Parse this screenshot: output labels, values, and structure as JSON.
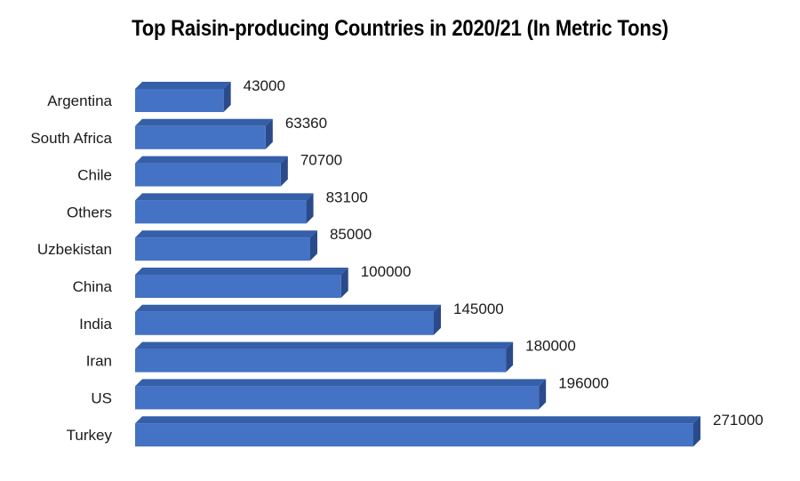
{
  "chart_data": {
    "type": "bar",
    "orientation": "horizontal",
    "title": "Top Raisin-producing  Countries in 2020/21 (In Metric Tons)",
    "categories": [
      "Argentina",
      "South Africa",
      "Chile",
      "Others",
      "Uzbekistan",
      "China",
      "India",
      "Iran",
      "US",
      "Turkey"
    ],
    "values": [
      43000,
      63360,
      70700,
      83100,
      85000,
      100000,
      145000,
      180000,
      196000,
      271000
    ],
    "data_labels": [
      "43000",
      "63360",
      "70700",
      "83100",
      "85000",
      "100000",
      "145000",
      "180000",
      "196000",
      "271000"
    ],
    "xlabel": "",
    "ylabel": "",
    "xlim": [
      0,
      271000
    ],
    "grid": false,
    "legend": "none",
    "bar_color": "#4472C4",
    "bar_side_color": "#2A4A8A",
    "bar_top_color": "#355FA8"
  }
}
